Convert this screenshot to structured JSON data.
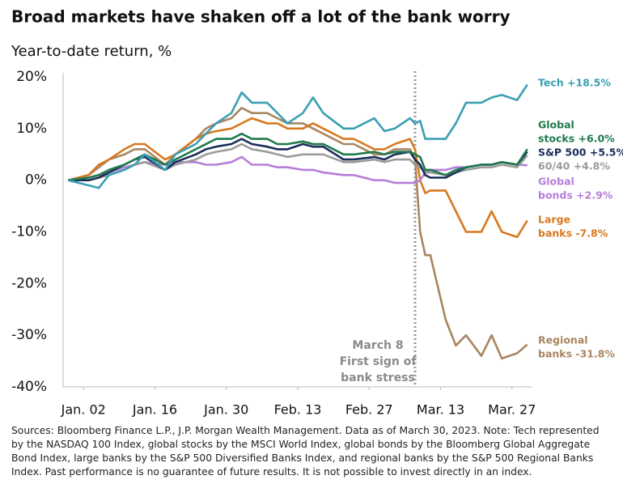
{
  "chart_data": {
    "type": "line",
    "title": "Broad markets have shaken off a lot of the bank worry",
    "subtitle": "Year-to-date return, %",
    "x": [
      -3,
      1,
      3,
      5,
      8,
      10,
      12,
      16,
      18,
      22,
      24,
      26,
      29,
      31,
      33,
      36,
      38,
      40,
      43,
      45,
      47,
      51,
      53,
      57,
      59,
      61,
      64,
      65,
      66,
      67,
      68,
      71,
      73,
      75,
      78,
      80,
      82,
      85,
      87
    ],
    "xlim": [
      -4,
      88
    ],
    "xticks": [
      {
        "value": 0,
        "label": "Jan. 02"
      },
      {
        "value": 14,
        "label": "Jan. 16"
      },
      {
        "value": 28,
        "label": "Jan. 30"
      },
      {
        "value": 42,
        "label": "Feb. 13"
      },
      {
        "value": 56,
        "label": "Feb. 27"
      },
      {
        "value": 70,
        "label": "Mar. 13"
      },
      {
        "value": 84,
        "label": "Mar. 27"
      }
    ],
    "ylim": [
      -40,
      20
    ],
    "yticks": [
      {
        "value": 20,
        "label": "20%"
      },
      {
        "value": 10,
        "label": "10%"
      },
      {
        "value": 0,
        "label": "0%"
      },
      {
        "value": -10,
        "label": "-10%"
      },
      {
        "value": -20,
        "label": "-20%"
      },
      {
        "value": -30,
        "label": "-30%"
      },
      {
        "value": -40,
        "label": "-40%"
      }
    ],
    "series": [
      {
        "name": [
          "Tech +18.5%"
        ],
        "color": "#3a9fb1",
        "values": [
          0,
          -1,
          -1.5,
          1,
          2,
          3,
          5,
          2,
          5,
          7,
          9,
          11,
          13,
          17,
          15,
          15,
          13,
          11,
          13,
          16,
          13,
          10,
          10,
          12,
          9.5,
          10,
          12,
          11,
          11.5,
          8,
          8,
          8,
          11,
          15,
          15,
          16,
          16.5,
          15.5,
          18.5
        ]
      },
      {
        "name": [
          "Global",
          "stocks +6.0%"
        ],
        "color": "#1e7a4c",
        "values": [
          0,
          0.5,
          1,
          2,
          3,
          4,
          5,
          3,
          4,
          6,
          7,
          8,
          8,
          9,
          8,
          8,
          7,
          7,
          7.5,
          7,
          7,
          5,
          5,
          5.5,
          5,
          5.5,
          5.5,
          5,
          4.5,
          2,
          2,
          1,
          2,
          2.5,
          3,
          3,
          3.5,
          3,
          6.0
        ]
      },
      {
        "name": [
          "S&P 500 +5.5%"
        ],
        "color": "#1a2d5a",
        "values": [
          0,
          0,
          0.5,
          1.5,
          3,
          4,
          4.5,
          2,
          3.5,
          5,
          6,
          6.5,
          7,
          8,
          7,
          6.5,
          6,
          6,
          7,
          6.5,
          6.5,
          4,
          4,
          4.5,
          4,
          5,
          5.5,
          4,
          3,
          1,
          0.5,
          0.5,
          1.5,
          2.5,
          3,
          3,
          3.5,
          3,
          5.5
        ]
      },
      {
        "name": [
          "60/40 +4.8%"
        ],
        "color": "#9b9b9b",
        "values": [
          0,
          0,
          0.5,
          1,
          2,
          3,
          3.5,
          2,
          3,
          4,
          5,
          5.5,
          6,
          7,
          6,
          5.5,
          5,
          4.5,
          5,
          5,
          5,
          3.5,
          3.5,
          4,
          3.5,
          4,
          4,
          3,
          2.5,
          1.5,
          1.5,
          1,
          1.5,
          2,
          2.5,
          2.5,
          3,
          2.5,
          4.8
        ]
      },
      {
        "name": [
          "Global",
          "bonds +2.9%"
        ],
        "color": "#b57ed9",
        "values": [
          0,
          0.5,
          1,
          1.5,
          2.5,
          3,
          3.5,
          3,
          3.5,
          3.5,
          3,
          3,
          3.5,
          4.5,
          3,
          3,
          2.5,
          2.5,
          2,
          2,
          1.5,
          1,
          1,
          0,
          0,
          -0.5,
          -0.5,
          -0.5,
          0,
          1.5,
          2,
          2,
          2.5,
          2.5,
          3,
          3,
          3.5,
          3,
          2.9
        ]
      },
      {
        "name": [
          "Large",
          "banks -7.8%"
        ],
        "color": "#d7791f",
        "values": [
          0,
          1,
          3,
          4,
          6,
          7,
          7,
          4,
          5,
          8,
          9,
          9.5,
          10,
          11,
          12,
          11,
          11,
          10,
          10,
          11,
          10,
          8,
          8,
          6,
          6,
          7,
          8,
          6,
          0,
          -2.5,
          -2,
          -2,
          -6,
          -10,
          -10,
          -6,
          -10,
          -11,
          -7.8
        ]
      },
      {
        "name": [
          "Regional",
          "banks -31.8%"
        ],
        "color": "#a88660",
        "values": [
          0,
          1,
          2.5,
          4,
          5,
          6,
          6,
          3,
          5,
          8,
          10,
          11,
          12,
          14,
          13,
          13,
          12,
          11,
          11,
          10,
          9,
          7,
          7,
          5,
          5,
          6,
          6,
          4,
          -10,
          -14.5,
          -14.5,
          -27,
          -32,
          -30,
          -34,
          -30,
          -34.5,
          -33.5,
          -31.8
        ]
      }
    ],
    "annotation": {
      "x": 65,
      "lines": [
        "March 8",
        "First sign of",
        "bank stress"
      ]
    },
    "source": "Sources: Bloomberg Finance L.P., J.P. Morgan Wealth Management. Data as of March 30, 2023. Note: Tech represented by the NASDAQ 100 Index, global stocks by the MSCI World Index, global bonds by the Bloomberg Global Aggregate Bond Index, large banks by the S&P 500 Diversified Banks Index, and regional banks by the S&P 500 Regional Banks Index. Past performance is no guarantee of future results. It is not possible to invest directly in an index."
  }
}
